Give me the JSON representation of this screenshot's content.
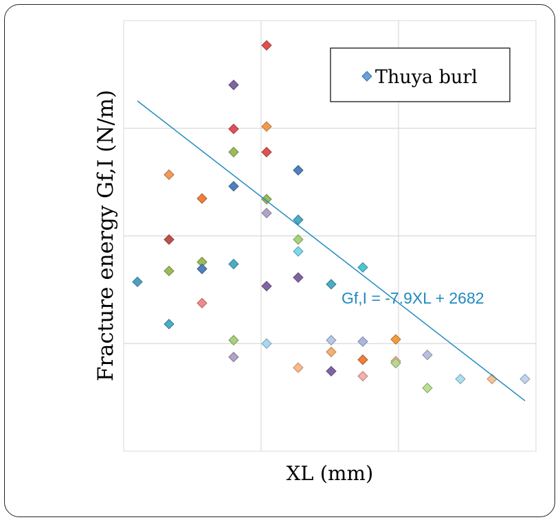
{
  "chart_data": {
    "type": "scatter",
    "title": "",
    "xlabel": "XL (mm)",
    "ylabel": "Fracture energy Gf,I (N/m)",
    "xlim": [
      0,
      300
    ],
    "ylim": [
      0,
      3200
    ],
    "x_gridlines": [
      100,
      200
    ],
    "y_gridlines": [
      800,
      1600,
      2400
    ],
    "grid": true,
    "legend": {
      "position": "top-right",
      "entries": [
        "Thuya burl"
      ]
    },
    "series": [
      {
        "name": "Thuya burl",
        "marker": "diamond",
        "points": [
          {
            "x": 10,
            "y": 1259,
            "color": "#4f9fc3"
          },
          {
            "x": 33,
            "y": 2055,
            "color": "#f39a5a"
          },
          {
            "x": 33,
            "y": 1573,
            "color": "#c0504d"
          },
          {
            "x": 33,
            "y": 1340,
            "color": "#9bbb59"
          },
          {
            "x": 33,
            "y": 945,
            "color": "#4bacc6"
          },
          {
            "x": 57,
            "y": 1878,
            "color": "#f07f3a"
          },
          {
            "x": 57,
            "y": 1406,
            "color": "#9bbb59"
          },
          {
            "x": 57,
            "y": 1355,
            "color": "#4f81bd"
          },
          {
            "x": 57,
            "y": 1101,
            "color": "#f08a8a"
          },
          {
            "x": 80,
            "y": 2722,
            "color": "#8064a2"
          },
          {
            "x": 80,
            "y": 2395,
            "color": "#e0505a"
          },
          {
            "x": 80,
            "y": 2223,
            "color": "#9bbb59"
          },
          {
            "x": 80,
            "y": 1969,
            "color": "#4f81bd"
          },
          {
            "x": 80,
            "y": 1391,
            "color": "#4bacc6"
          },
          {
            "x": 80,
            "y": 825,
            "color": "#a8d27a"
          },
          {
            "x": 80,
            "y": 700,
            "color": "#b3a2c7"
          },
          {
            "x": 104,
            "y": 3016,
            "color": "#e05050"
          },
          {
            "x": 104,
            "y": 2413,
            "color": "#f39a4a"
          },
          {
            "x": 104,
            "y": 2223,
            "color": "#e05050"
          },
          {
            "x": 104,
            "y": 1873,
            "color": "#9bbb59"
          },
          {
            "x": 104,
            "y": 1770,
            "color": "#b3a2c7"
          },
          {
            "x": 104,
            "y": 1227,
            "color": "#8064a2"
          },
          {
            "x": 104,
            "y": 800,
            "color": "#a8d8f0"
          },
          {
            "x": 127,
            "y": 2088,
            "color": "#4f81bd"
          },
          {
            "x": 127,
            "y": 1720,
            "color": "#4bacc6"
          },
          {
            "x": 127,
            "y": 1573,
            "color": "#a8d27a"
          },
          {
            "x": 127,
            "y": 1485,
            "color": "#7fd7f0"
          },
          {
            "x": 127,
            "y": 1291,
            "color": "#8064a2"
          },
          {
            "x": 127,
            "y": 621,
            "color": "#fbb88a"
          },
          {
            "x": 151,
            "y": 1241,
            "color": "#4bacc6"
          },
          {
            "x": 151,
            "y": 825,
            "color": "#b8c8e8"
          },
          {
            "x": 151,
            "y": 738,
            "color": "#f8b070"
          },
          {
            "x": 151,
            "y": 595,
            "color": "#8064a2"
          },
          {
            "x": 174,
            "y": 1366,
            "color": "#4bc6d6"
          },
          {
            "x": 174,
            "y": 815,
            "color": "#aab8e0"
          },
          {
            "x": 174,
            "y": 680,
            "color": "#f07f3a"
          },
          {
            "x": 174,
            "y": 558,
            "color": "#f4b0b0"
          },
          {
            "x": 198,
            "y": 831,
            "color": "#f39a3a"
          },
          {
            "x": 198,
            "y": 670,
            "color": "#f5c4a0"
          },
          {
            "x": 198,
            "y": 655,
            "color": "#b8d890"
          },
          {
            "x": 221,
            "y": 716,
            "color": "#b8c0e0"
          },
          {
            "x": 221,
            "y": 470,
            "color": "#b8e090"
          },
          {
            "x": 245,
            "y": 537,
            "color": "#a8e0f0"
          },
          {
            "x": 268,
            "y": 537,
            "color": "#fbc090"
          },
          {
            "x": 292,
            "y": 537,
            "color": "#c0d4f0"
          }
        ]
      }
    ],
    "trendline": {
      "label": "Gf,I = -7.9XL + 2682",
      "slope": -7.9,
      "intercept": 2682,
      "x_range": [
        10,
        292
      ],
      "color": "#1f8ac0"
    }
  }
}
